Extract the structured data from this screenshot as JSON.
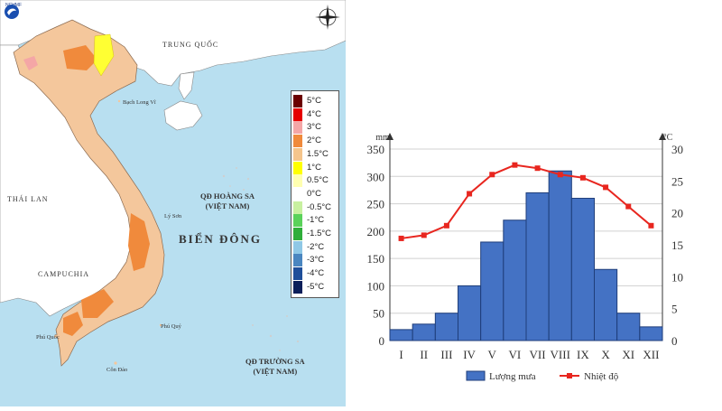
{
  "map": {
    "logo_text": "NCHMF",
    "labels": {
      "china": "TRUNG QUỐC",
      "thailand": "THÁI LAN",
      "cambodia": "CAMPUCHIA",
      "east_sea": "BIỂN ĐÔNG",
      "paracel_1": "QĐ HOÀNG SA",
      "paracel_2": "(VIỆT NAM)",
      "spratly_1": "QĐ TRƯỜNG SA",
      "spratly_2": "(VIỆT NAM)",
      "bach_long_vi": "Bạch Long Vĩ",
      "ly_son": "Lý Sơn",
      "phu_quy": "Phú Quý",
      "phu_quoc": "Phú Quốc",
      "con_dao": "Côn Đảo"
    },
    "legend": [
      {
        "label": "5°C",
        "color": "#6b0000"
      },
      {
        "label": "4°C",
        "color": "#e60000"
      },
      {
        "label": "3°C",
        "color": "#f4a6a6"
      },
      {
        "label": "2°C",
        "color": "#f08a3c"
      },
      {
        "label": "1.5°C",
        "color": "#f5c58c"
      },
      {
        "label": "1°C",
        "color": "#ffff00"
      },
      {
        "label": "0.5°C",
        "color": "#ffffb0"
      },
      {
        "label": "0°C",
        "color": "#ffffff"
      },
      {
        "label": "-0.5°C",
        "color": "#c8f0a0"
      },
      {
        "label": "-1°C",
        "color": "#5ad25a"
      },
      {
        "label": "-1.5°C",
        "color": "#2fae3a"
      },
      {
        "label": "-2°C",
        "color": "#8fc8e6"
      },
      {
        "label": "-3°C",
        "color": "#4a86c0"
      },
      {
        "label": "-4°C",
        "color": "#1f4f9a"
      },
      {
        "label": "-5°C",
        "color": "#0c1f5a"
      }
    ]
  },
  "chart_data": {
    "type": "bar+line",
    "categories": [
      "I",
      "II",
      "III",
      "IV",
      "V",
      "VI",
      "VII",
      "VIII",
      "IX",
      "X",
      "XI",
      "XII"
    ],
    "series": [
      {
        "name": "Lượng mưa",
        "type": "bar",
        "axis": "left",
        "color": "#4472c4",
        "values": [
          20,
          30,
          50,
          100,
          180,
          220,
          270,
          310,
          260,
          130,
          50,
          25
        ]
      },
      {
        "name": "Nhiệt độ",
        "type": "line",
        "axis": "right",
        "color": "#e8261f",
        "values": [
          16,
          16.5,
          18,
          23,
          26,
          27.5,
          27,
          26,
          25.5,
          24,
          21,
          18
        ]
      }
    ],
    "y_left": {
      "unit": "mm",
      "ylim": [
        0,
        350
      ],
      "ticks": [
        0,
        50,
        100,
        150,
        200,
        250,
        300,
        350
      ]
    },
    "y_right": {
      "unit": "°C",
      "ylim": [
        0,
        30
      ],
      "ticks": [
        0,
        5,
        10,
        15,
        20,
        25,
        30
      ]
    },
    "grid": "horizontal",
    "legend_position": "bottom"
  }
}
